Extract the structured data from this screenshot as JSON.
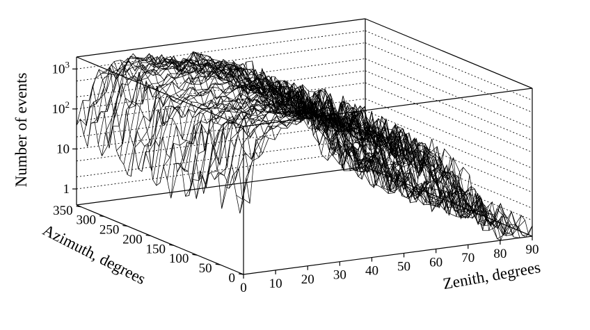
{
  "chart_data": {
    "type": "surface",
    "title": "",
    "xlabel": "Zenith, degrees",
    "ylabel": "Azimuth, degrees",
    "zlabel": "Number of events",
    "x_ticks": [
      "0",
      "10",
      "20",
      "30",
      "40",
      "50",
      "60",
      "70",
      "80",
      "90"
    ],
    "y_ticks": [
      "0",
      "50",
      "100",
      "150",
      "200",
      "250",
      "300",
      "350"
    ],
    "z_ticks": [
      {
        "value": 1,
        "base": "1",
        "exp": ""
      },
      {
        "value": 10,
        "base": "10",
        "exp": ""
      },
      {
        "value": 100,
        "base": "10",
        "exp": "2"
      },
      {
        "value": 1000,
        "base": "10",
        "exp": "3"
      }
    ],
    "xlim": [
      0,
      90
    ],
    "ylim": [
      0,
      360
    ],
    "zlim_log10": [
      -0.4,
      3.3
    ],
    "z_scale": "log",
    "grid": true,
    "line_color": "#000000",
    "surface_profile": {
      "zenith": [
        0,
        5,
        10,
        15,
        20,
        25,
        30,
        35,
        40,
        45,
        50,
        55,
        60,
        65,
        70,
        75,
        80,
        85,
        90
      ],
      "log10_events": [
        1.3,
        2.6,
        2.95,
        3.1,
        3.15,
        3.12,
        3.0,
        2.85,
        2.65,
        2.45,
        2.3,
        2.15,
        1.95,
        1.6,
        1.1,
        0.5,
        0.0,
        -0.3,
        -0.4
      ]
    }
  }
}
